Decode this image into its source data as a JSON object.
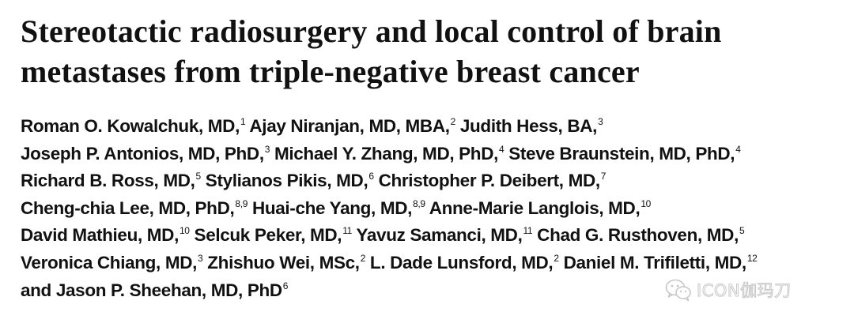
{
  "paper": {
    "title_lines": [
      "Stereotactic radiosurgery and local control of brain",
      "metastases from triple-negative breast cancer"
    ],
    "author_lines": [
      [
        {
          "name": "Roman O. Kowalchuk, MD,",
          "sup": "1"
        },
        {
          "name": "Ajay Niranjan, MD, MBA,",
          "sup": "2"
        },
        {
          "name": "Judith Hess, BA,",
          "sup": "3"
        }
      ],
      [
        {
          "name": "Joseph P. Antonios, MD, PhD,",
          "sup": "3"
        },
        {
          "name": "Michael Y. Zhang, MD, PhD,",
          "sup": "4"
        },
        {
          "name": "Steve Braunstein, MD, PhD,",
          "sup": "4"
        }
      ],
      [
        {
          "name": "Richard B. Ross, MD,",
          "sup": "5"
        },
        {
          "name": "Stylianos Pikis, MD,",
          "sup": "6"
        },
        {
          "name": "Christopher P. Deibert, MD,",
          "sup": "7"
        }
      ],
      [
        {
          "name": "Cheng-chia Lee, MD, PhD,",
          "sup": "8,9"
        },
        {
          "name": "Huai-che Yang, MD,",
          "sup": "8,9"
        },
        {
          "name": "Anne-Marie Langlois, MD,",
          "sup": "10"
        }
      ],
      [
        {
          "name": "David Mathieu, MD,",
          "sup": "10"
        },
        {
          "name": "Selcuk Peker, MD,",
          "sup": "11"
        },
        {
          "name": "Yavuz Samanci, MD,",
          "sup": "11"
        },
        {
          "name": "Chad G. Rusthoven, MD,",
          "sup": "5"
        }
      ],
      [
        {
          "name": "Veronica Chiang, MD,",
          "sup": "3"
        },
        {
          "name": "Zhishuo Wei, MSc,",
          "sup": "2"
        },
        {
          "name": "L. Dade Lunsford, MD,",
          "sup": "2"
        },
        {
          "name": "Daniel M. Trifiletti, MD,",
          "sup": "12"
        }
      ],
      [
        {
          "name": "and Jason P. Sheehan, MD, PhD",
          "sup": "6"
        }
      ]
    ]
  },
  "watermark": {
    "text": "ICON伽玛刀",
    "icon": "wechat-icon"
  }
}
